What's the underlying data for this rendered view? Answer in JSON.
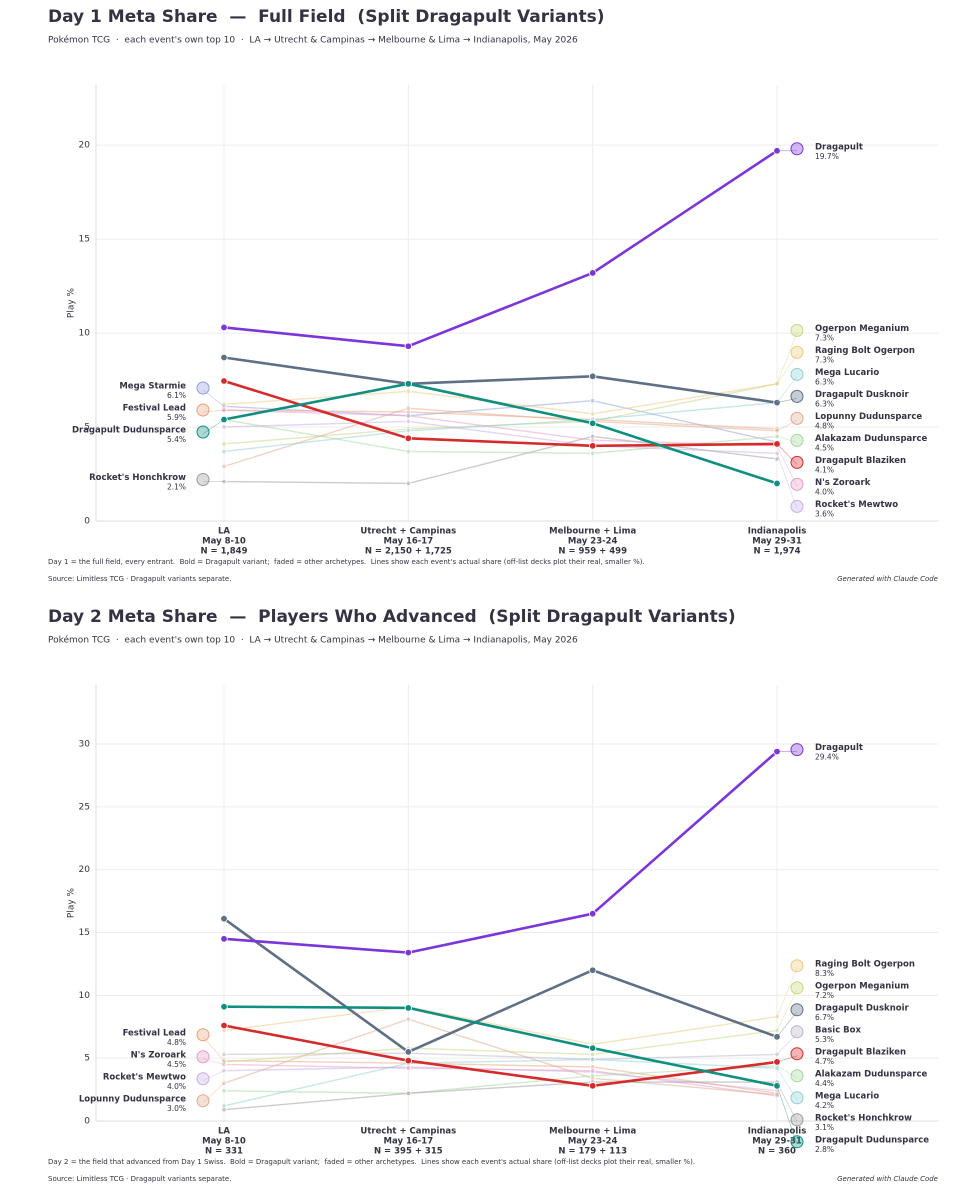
{
  "chart_data": [
    {
      "type": "line",
      "title": "Day 1 Meta Share  —  Full Field  (Split Dragapult Variants)",
      "subtitle": "Pokémon TCG  ·  each event's own top 10  ·  LA → Utrecht & Campinas → Melbourne & Lima → Indianapolis, May 2026",
      "ylabel": "Play %",
      "categories": [
        "LA",
        "Utrecht + Campinas",
        "Melbourne + Lima",
        "Indianapolis"
      ],
      "category_dates": [
        "May 8-10",
        "May 16-17",
        "May 23-24",
        "May 29-31"
      ],
      "category_sizes": [
        "N = 1,849",
        "N = 2,150 + 1,725",
        "N = 959 + 499",
        "N = 1,974"
      ],
      "ylim": [
        0,
        23.2
      ],
      "yticks": [
        0,
        5,
        10,
        15,
        20
      ],
      "grid": true,
      "note": "Day 1 = the full field, every entrant.  Bold = Dragapult variant;  faded = other archetypes.  Lines show each event's actual share (off-list decks plot their real, smaller %).",
      "source": "Source: Limitless TCG · Dragapult variants separate.",
      "credit": "Generated with Claude Code",
      "series": [
        {
          "name": "Mega Starmie",
          "color": "#8f9fe0",
          "bold": false,
          "values": [
            6.1,
            5.6,
            6.4,
            4.2
          ],
          "value_labels": [
            "6.1%",
            null,
            null,
            null
          ]
        },
        {
          "name": "Festival Lead",
          "color": "#e8a27a",
          "bold": false,
          "values": [
            5.9,
            5.8,
            5.4,
            4.9
          ],
          "value_labels": [
            "5.9%",
            null,
            null,
            null
          ]
        },
        {
          "name": "Rocket's Honchkrow",
          "color": "#9a9a9a",
          "bold": false,
          "values": [
            2.1,
            2.0,
            4.5,
            3.3
          ],
          "value_labels": [
            "2.1%",
            null,
            null,
            null
          ]
        },
        {
          "name": "Ogerpon Meganium",
          "color": "#c9d67e",
          "bold": false,
          "values": [
            4.1,
            4.9,
            5.3,
            7.3
          ],
          "value_labels": [
            null,
            null,
            null,
            "7.3%"
          ]
        },
        {
          "name": "Raging Bolt Ogerpon",
          "color": "#ecc97c",
          "bold": false,
          "values": [
            6.2,
            6.9,
            5.7,
            7.3
          ],
          "value_labels": [
            null,
            null,
            null,
            "7.3%"
          ]
        },
        {
          "name": "Mega Lucario",
          "color": "#8fd0d4",
          "bold": false,
          "values": [
            3.7,
            4.8,
            5.4,
            6.3
          ],
          "value_labels": [
            null,
            null,
            null,
            "6.3%"
          ]
        },
        {
          "name": "Lopunny Dudunsparce",
          "color": "#dfa98e",
          "bold": false,
          "values": [
            2.9,
            6.0,
            5.3,
            4.8
          ],
          "value_labels": [
            null,
            null,
            null,
            "4.8%"
          ]
        },
        {
          "name": "Alakazam Dudunsparce",
          "color": "#a3d89c",
          "bold": false,
          "values": [
            5.4,
            3.7,
            3.6,
            4.5
          ],
          "value_labels": [
            null,
            null,
            null,
            "4.5%"
          ]
        },
        {
          "name": "N's Zoroark",
          "color": "#e79bc9",
          "bold": false,
          "values": [
            5.9,
            5.6,
            4.3,
            4.0
          ],
          "value_labels": [
            null,
            null,
            null,
            "4.0%"
          ]
        },
        {
          "name": "Rocket's Mewtwo",
          "color": "#c7aee6",
          "bold": false,
          "values": [
            5.0,
            5.3,
            4.0,
            3.6
          ],
          "value_labels": [
            null,
            null,
            null,
            "3.6%"
          ]
        },
        {
          "name": "Dragapult Dusknoir",
          "color": "#5f6f86",
          "bold": true,
          "values": [
            8.7,
            7.3,
            7.7,
            6.3
          ],
          "value_labels": [
            null,
            null,
            null,
            "6.3%"
          ]
        },
        {
          "name": "Dragapult Blaziken",
          "color": "#d62b2b",
          "bold": true,
          "values": [
            7.45,
            4.4,
            4.0,
            4.1
          ],
          "value_labels": [
            null,
            null,
            null,
            "4.1%"
          ]
        },
        {
          "name": "Dragapult Dudunsparce",
          "color": "#0f8f80",
          "bold": true,
          "values": [
            5.4,
            7.3,
            5.2,
            2.0
          ],
          "value_labels": [
            "5.4%",
            null,
            null,
            null
          ]
        },
        {
          "name": "Dragapult",
          "color": "#7b35d8",
          "bold": true,
          "values": [
            10.3,
            9.3,
            13.2,
            19.7
          ],
          "value_labels": [
            null,
            null,
            null,
            "19.7%"
          ]
        }
      ]
    },
    {
      "type": "line",
      "title": "Day 2 Meta Share  —  Players Who Advanced  (Split Dragapult Variants)",
      "subtitle": "Pokémon TCG  ·  each event's own top 10  ·  LA → Utrecht & Campinas → Melbourne & Lima → Indianapolis, May 2026",
      "ylabel": "Play %",
      "categories": [
        "LA",
        "Utrecht + Campinas",
        "Melbourne + Lima",
        "Indianapolis"
      ],
      "category_dates": [
        "May 8-10",
        "May 16-17",
        "May 23-24",
        "May 29-31"
      ],
      "category_sizes": [
        "N = 331",
        "N = 395 + 315",
        "N = 179 + 113",
        "N = 360"
      ],
      "ylim": [
        0,
        34.7
      ],
      "yticks": [
        0,
        5,
        10,
        15,
        20,
        25,
        30
      ],
      "grid": true,
      "note": "Day 2 = the field that advanced from Day 1 Swiss.  Bold = Dragapult variant;  faded = other archetypes.  Lines show each event's actual share (off-list decks plot their real, smaller %).",
      "source": "Source: Limitless TCG · Dragapult variants separate.",
      "credit": "Generated with Claude Code",
      "series": [
        {
          "name": "Rocket's Mewtwo",
          "color": "#c7aee6",
          "bold": false,
          "values": [
            4.0,
            4.3,
            3.9,
            2.4
          ],
          "value_labels": [
            "4.0%",
            null,
            null,
            null
          ]
        },
        {
          "name": "Festival Lead",
          "color": "#e8a27a",
          "bold": false,
          "values": [
            4.8,
            4.6,
            4.3,
            2.2
          ],
          "value_labels": [
            "4.8%",
            null,
            null,
            null
          ]
        },
        {
          "name": "N's Zoroark",
          "color": "#e79bc9",
          "bold": false,
          "values": [
            4.5,
            4.2,
            4.0,
            2.0
          ],
          "value_labels": [
            "4.5%",
            null,
            null,
            null
          ]
        },
        {
          "name": "Lopunny Dudunsparce",
          "color": "#dfa98e",
          "bold": false,
          "values": [
            3.0,
            8.1,
            3.4,
            2.1
          ],
          "value_labels": [
            "3.0%",
            null,
            null,
            null
          ]
        },
        {
          "name": "Raging Bolt Ogerpon",
          "color": "#ecc97c",
          "bold": false,
          "values": [
            7.2,
            9.1,
            6.1,
            8.3
          ],
          "value_labels": [
            null,
            null,
            null,
            "8.3%"
          ]
        },
        {
          "name": "Ogerpon Meganium",
          "color": "#c9d67e",
          "bold": false,
          "values": [
            4.7,
            5.8,
            5.3,
            7.2
          ],
          "value_labels": [
            null,
            null,
            null,
            "7.2%"
          ]
        },
        {
          "name": "Basic Box",
          "color": "#b9b3c9",
          "bold": false,
          "values": [
            5.3,
            5.4,
            4.9,
            5.3
          ],
          "value_labels": [
            null,
            null,
            null,
            "5.3%"
          ]
        },
        {
          "name": "Alakazam Dudunsparce",
          "color": "#a3d89c",
          "bold": false,
          "values": [
            2.4,
            2.2,
            3.6,
            4.4
          ],
          "value_labels": [
            null,
            null,
            null,
            "4.4%"
          ]
        },
        {
          "name": "Mega Lucario",
          "color": "#8fd0d4",
          "bold": false,
          "values": [
            1.2,
            4.6,
            4.9,
            4.2
          ],
          "value_labels": [
            null,
            null,
            null,
            "4.2%"
          ]
        },
        {
          "name": "Rocket's Honchkrow",
          "color": "#9a9a9a",
          "bold": false,
          "values": [
            0.9,
            2.2,
            3.1,
            3.1
          ],
          "value_labels": [
            null,
            null,
            null,
            "3.1%"
          ]
        },
        {
          "name": "Dragapult Dusknoir",
          "color": "#5f6f86",
          "bold": true,
          "values": [
            16.1,
            5.5,
            12.0,
            6.7
          ],
          "value_labels": [
            null,
            null,
            null,
            "6.7%"
          ]
        },
        {
          "name": "Dragapult Blaziken",
          "color": "#d62b2b",
          "bold": true,
          "values": [
            7.6,
            4.8,
            2.8,
            4.7
          ],
          "value_labels": [
            null,
            null,
            null,
            "4.7%"
          ]
        },
        {
          "name": "Dragapult Dudunsparce",
          "color": "#0f8f80",
          "bold": true,
          "values": [
            9.1,
            9.0,
            5.8,
            2.8
          ],
          "value_labels": [
            null,
            null,
            null,
            "2.8%"
          ]
        },
        {
          "name": "Dragapult",
          "color": "#7b35d8",
          "bold": true,
          "values": [
            14.5,
            13.4,
            16.5,
            29.4
          ],
          "value_labels": [
            null,
            null,
            null,
            "29.4%"
          ]
        }
      ]
    }
  ]
}
